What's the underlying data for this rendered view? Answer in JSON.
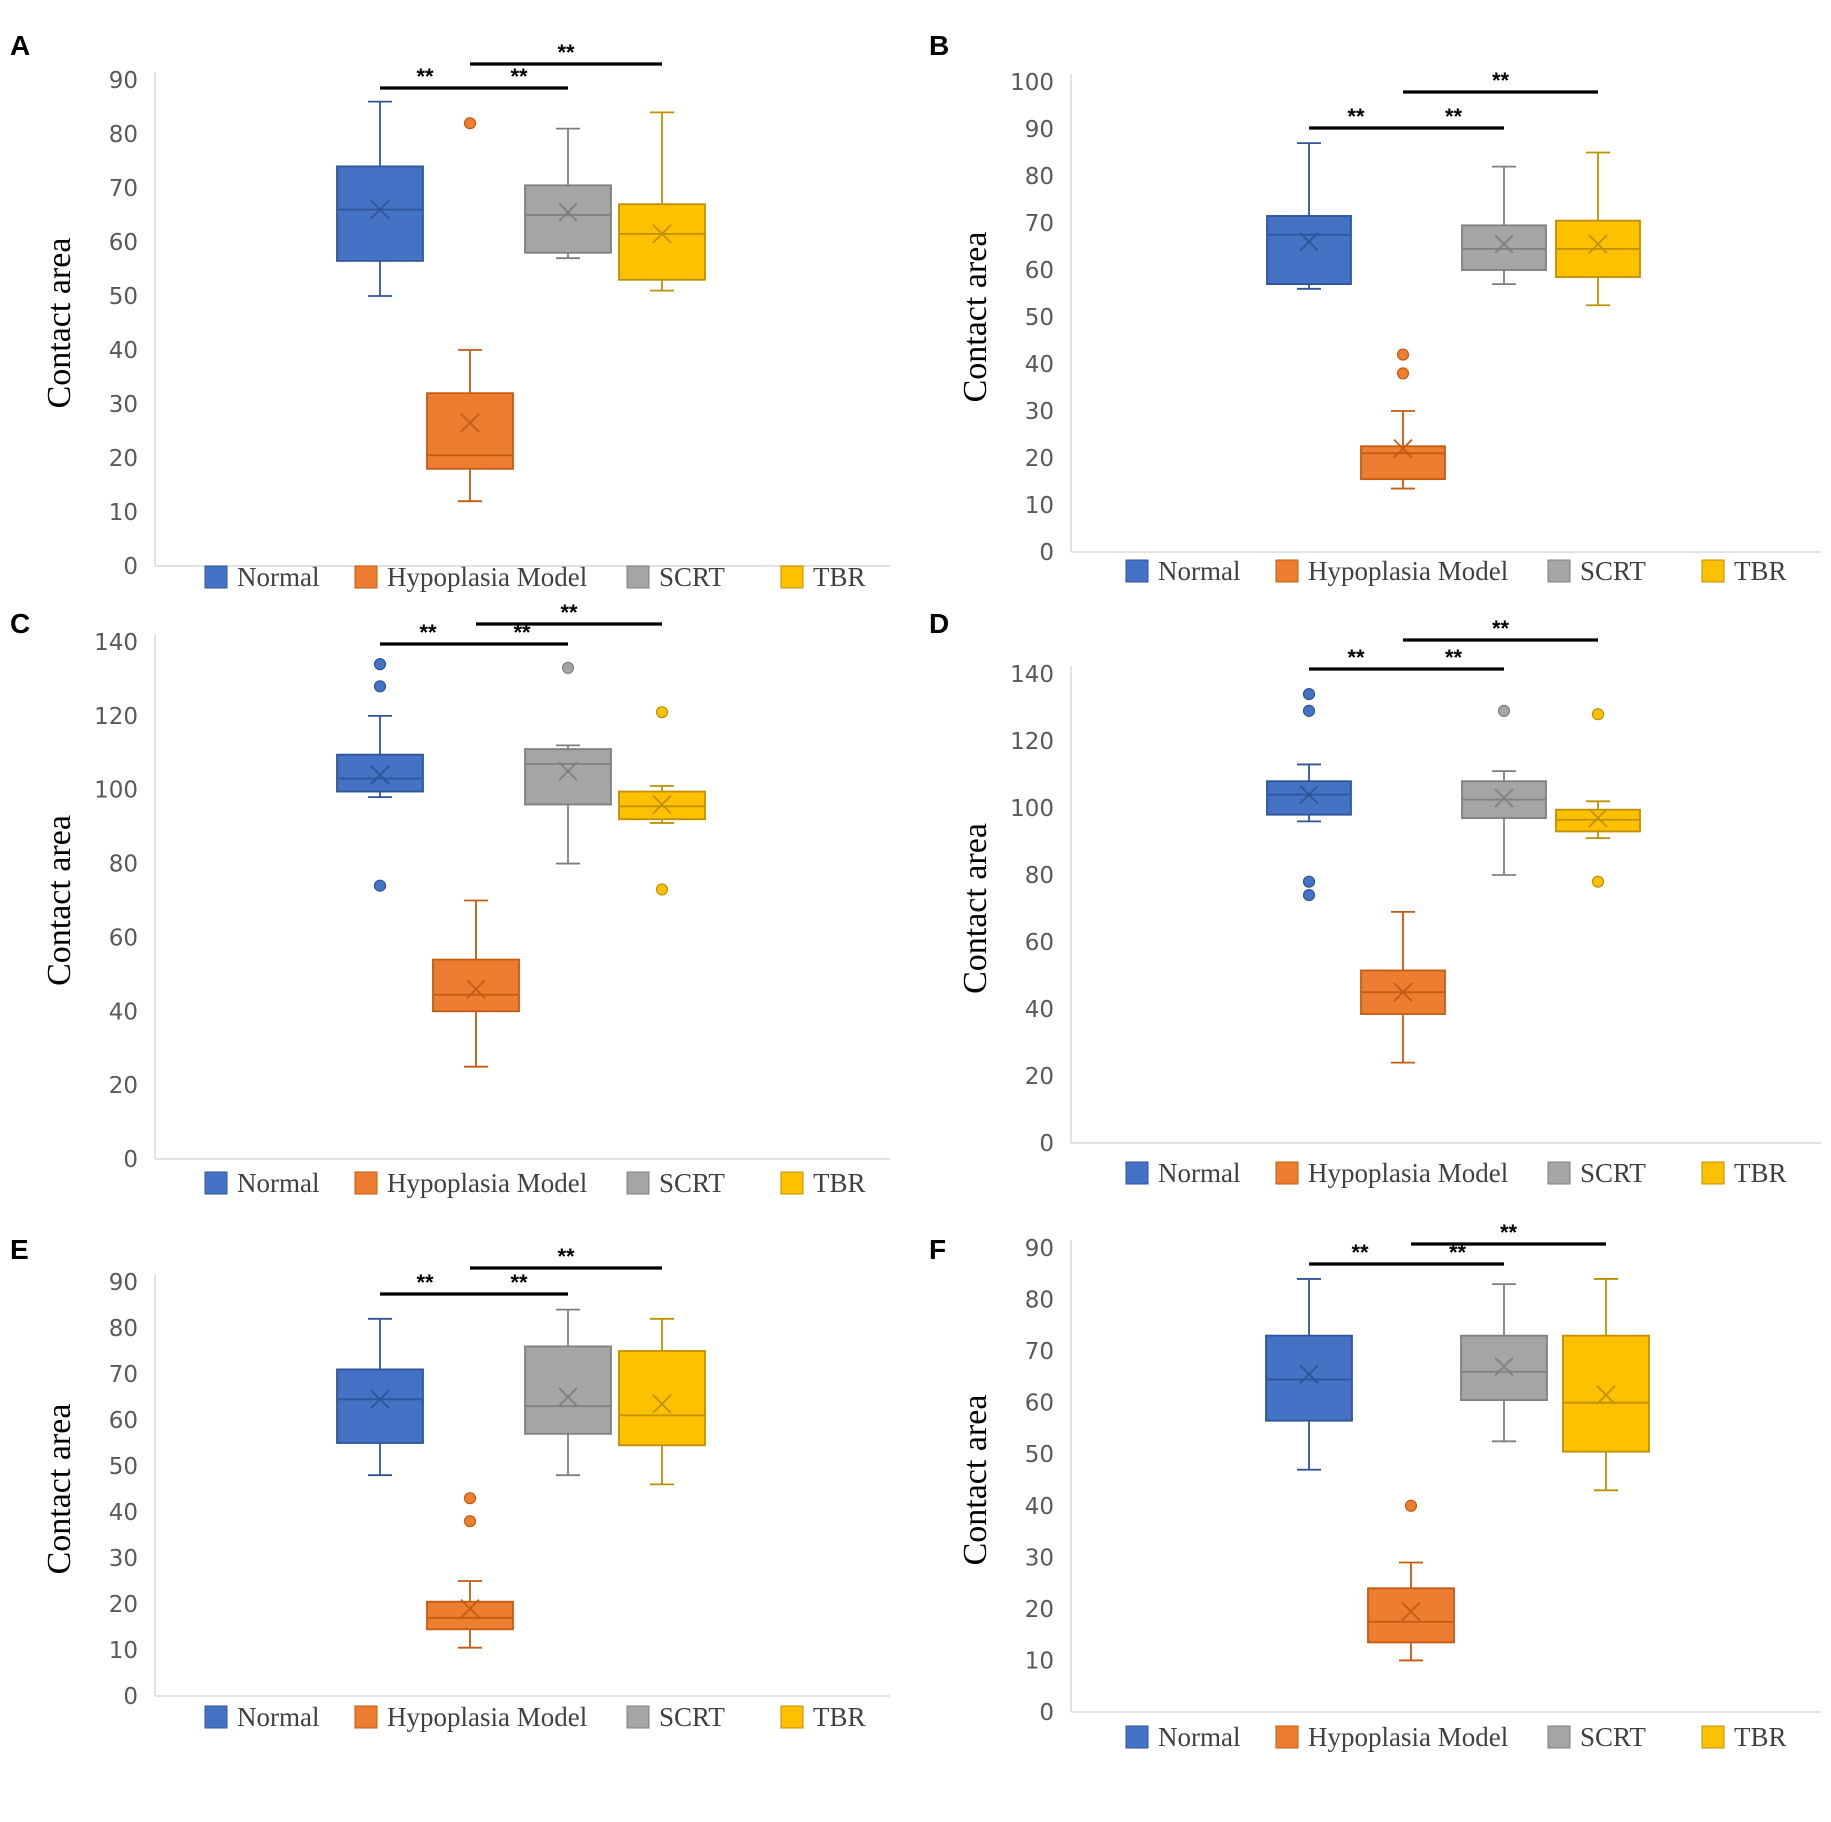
{
  "legend": {
    "items": [
      {
        "label": "Normal",
        "color": "#4472C4",
        "stroke": "#2F5597"
      },
      {
        "label": "Hypoplasia Model",
        "color": "#ED7D31",
        "stroke": "#C55A11"
      },
      {
        "label": "SCRT",
        "color": "#A5A5A5",
        "stroke": "#7F7F7F"
      },
      {
        "label": "TBR",
        "color": "#FFC000",
        "stroke": "#BF9000"
      }
    ]
  },
  "chart_data": [
    {
      "type": "box",
      "panel": "A",
      "ylabel": "Contact area",
      "ylim": [
        0,
        90
      ],
      "yticks": [
        "0",
        "10",
        "20",
        "30",
        "40",
        "50",
        "60",
        "70",
        "80",
        "90"
      ],
      "significance": "**",
      "series": [
        {
          "name": "Normal",
          "min": 50,
          "q1": 56.5,
          "median": 66,
          "q3": 74,
          "max": 86,
          "mean": 66,
          "outliers": []
        },
        {
          "name": "Hypoplasia Model",
          "min": 12,
          "q1": 18,
          "median": 20.5,
          "q3": 32,
          "max": 40,
          "mean": 26.5,
          "outliers": [
            82
          ]
        },
        {
          "name": "SCRT",
          "min": 57,
          "q1": 58,
          "median": 65,
          "q3": 70.5,
          "max": 81,
          "mean": 65.5,
          "outliers": []
        },
        {
          "name": "TBR",
          "min": 51,
          "q1": 53,
          "median": 61.5,
          "q3": 67,
          "max": 84,
          "mean": 61.5,
          "outliers": []
        }
      ],
      "brackets": [
        {
          "from": "Normal",
          "to": "Hypoplasia Model",
          "label": "**"
        },
        {
          "from": "Hypoplasia Model",
          "to": "SCRT",
          "label": "**"
        },
        {
          "from": "Hypoplasia Model",
          "to": "TBR",
          "label": "**"
        }
      ]
    },
    {
      "type": "box",
      "panel": "B",
      "ylabel": "Contact area",
      "ylim": [
        0,
        100
      ],
      "yticks": [
        "0",
        "10",
        "20",
        "30",
        "40",
        "50",
        "60",
        "70",
        "80",
        "90",
        "100"
      ],
      "significance": "**",
      "series": [
        {
          "name": "Normal",
          "min": 56,
          "q1": 57,
          "median": 67.5,
          "q3": 71.5,
          "max": 87,
          "mean": 66,
          "outliers": []
        },
        {
          "name": "Hypoplasia Model",
          "min": 13.5,
          "q1": 15.5,
          "median": 21,
          "q3": 22.5,
          "max": 30,
          "mean": 22,
          "outliers": [
            38,
            42
          ]
        },
        {
          "name": "SCRT",
          "min": 57,
          "q1": 60,
          "median": 64.5,
          "q3": 69.5,
          "max": 82,
          "mean": 65.5,
          "outliers": []
        },
        {
          "name": "TBR",
          "min": 52.5,
          "q1": 58.5,
          "median": 64.5,
          "q3": 70.5,
          "max": 85,
          "mean": 65.5,
          "outliers": []
        }
      ],
      "brackets": [
        {
          "from": "Normal",
          "to": "Hypoplasia Model",
          "label": "**"
        },
        {
          "from": "Hypoplasia Model",
          "to": "SCRT",
          "label": "**"
        },
        {
          "from": "Hypoplasia Model",
          "to": "TBR",
          "label": "**"
        }
      ]
    },
    {
      "type": "box",
      "panel": "C",
      "ylabel": "Contact area",
      "ylim": [
        0,
        140
      ],
      "yticks": [
        "0",
        "20",
        "40",
        "60",
        "80",
        "100",
        "120",
        "140"
      ],
      "significance": "**",
      "series": [
        {
          "name": "Normal",
          "min": 98,
          "q1": 99.5,
          "median": 103,
          "q3": 109.5,
          "max": 120,
          "mean": 104,
          "outliers": [
            74,
            128,
            134
          ]
        },
        {
          "name": "Hypoplasia Model",
          "min": 25,
          "q1": 40,
          "median": 44.5,
          "q3": 54,
          "max": 70,
          "mean": 46,
          "outliers": []
        },
        {
          "name": "SCRT",
          "min": 80,
          "q1": 96,
          "median": 107,
          "q3": 111,
          "max": 112,
          "mean": 105,
          "outliers": [
            133
          ]
        },
        {
          "name": "TBR",
          "min": 91,
          "q1": 92,
          "median": 95.5,
          "q3": 99.5,
          "max": 101,
          "mean": 96,
          "outliers": [
            73,
            121
          ]
        }
      ],
      "brackets": [
        {
          "from": "Normal",
          "to": "Hypoplasia Model",
          "label": "**"
        },
        {
          "from": "Hypoplasia Model",
          "to": "SCRT",
          "label": "**"
        },
        {
          "from": "Hypoplasia Model",
          "to": "TBR",
          "label": "**"
        }
      ]
    },
    {
      "type": "box",
      "panel": "D",
      "ylabel": "Contact area",
      "ylim": [
        0,
        140
      ],
      "yticks": [
        "0",
        "20",
        "40",
        "60",
        "80",
        "100",
        "120",
        "140"
      ],
      "significance": "**",
      "series": [
        {
          "name": "Normal",
          "min": 96,
          "q1": 98,
          "median": 104,
          "q3": 108,
          "max": 113,
          "mean": 104,
          "outliers": [
            74,
            78,
            129,
            134
          ]
        },
        {
          "name": "Hypoplasia Model",
          "min": 24,
          "q1": 38.5,
          "median": 45,
          "q3": 51.5,
          "max": 69,
          "mean": 45,
          "outliers": []
        },
        {
          "name": "SCRT",
          "min": 80,
          "q1": 97,
          "median": 102.5,
          "q3": 108,
          "max": 111,
          "mean": 103,
          "outliers": [
            129
          ]
        },
        {
          "name": "TBR",
          "min": 91,
          "q1": 93,
          "median": 96.5,
          "q3": 99.5,
          "max": 102,
          "mean": 97,
          "outliers": [
            78,
            128
          ]
        }
      ],
      "brackets": [
        {
          "from": "Normal",
          "to": "Hypoplasia Model",
          "label": "**"
        },
        {
          "from": "Hypoplasia Model",
          "to": "SCRT",
          "label": "**"
        },
        {
          "from": "Hypoplasia Model",
          "to": "TBR",
          "label": "**"
        }
      ]
    },
    {
      "type": "box",
      "panel": "E",
      "ylabel": "Contact area",
      "ylim": [
        0,
        90
      ],
      "yticks": [
        "0",
        "10",
        "20",
        "30",
        "40",
        "50",
        "60",
        "70",
        "80",
        "90"
      ],
      "significance": "**",
      "series": [
        {
          "name": "Normal",
          "min": 48,
          "q1": 55,
          "median": 64.5,
          "q3": 71,
          "max": 82,
          "mean": 64.5,
          "outliers": []
        },
        {
          "name": "Hypoplasia Model",
          "min": 10.5,
          "q1": 14.5,
          "median": 17,
          "q3": 20.5,
          "max": 25,
          "mean": 19,
          "outliers": [
            38,
            43
          ]
        },
        {
          "name": "SCRT",
          "min": 48,
          "q1": 57,
          "median": 63,
          "q3": 76,
          "max": 84,
          "mean": 65,
          "outliers": []
        },
        {
          "name": "TBR",
          "min": 46,
          "q1": 54.5,
          "median": 61,
          "q3": 75,
          "max": 82,
          "mean": 63.5,
          "outliers": []
        }
      ],
      "brackets": [
        {
          "from": "Normal",
          "to": "Hypoplasia Model",
          "label": "**"
        },
        {
          "from": "Hypoplasia Model",
          "to": "SCRT",
          "label": "**"
        },
        {
          "from": "Hypoplasia Model",
          "to": "TBR",
          "label": "**"
        }
      ]
    },
    {
      "type": "box",
      "panel": "F",
      "ylabel": "Contact area",
      "ylim": [
        0,
        90
      ],
      "yticks": [
        "0",
        "10",
        "20",
        "30",
        "40",
        "50",
        "60",
        "70",
        "80",
        "90"
      ],
      "significance": "**",
      "series": [
        {
          "name": "Normal",
          "min": 47,
          "q1": 56.5,
          "median": 64.5,
          "q3": 73,
          "max": 84,
          "mean": 65.5,
          "outliers": []
        },
        {
          "name": "Hypoplasia Model",
          "min": 10,
          "q1": 13.5,
          "median": 17.5,
          "q3": 24,
          "max": 29,
          "mean": 19.5,
          "outliers": [
            40
          ]
        },
        {
          "name": "SCRT",
          "min": 52.5,
          "q1": 60.5,
          "median": 66,
          "q3": 73,
          "max": 83,
          "mean": 67,
          "outliers": []
        },
        {
          "name": "TBR",
          "min": 43,
          "q1": 50.5,
          "median": 60,
          "q3": 73,
          "max": 84,
          "mean": 61.5,
          "outliers": []
        }
      ],
      "brackets": [
        {
          "from": "Normal",
          "to": "Hypoplasia Model",
          "label": "**"
        },
        {
          "from": "Hypoplasia Model",
          "to": "SCRT",
          "label": "**"
        },
        {
          "from": "Hypoplasia Model",
          "to": "TBR",
          "label": "**"
        }
      ]
    }
  ]
}
